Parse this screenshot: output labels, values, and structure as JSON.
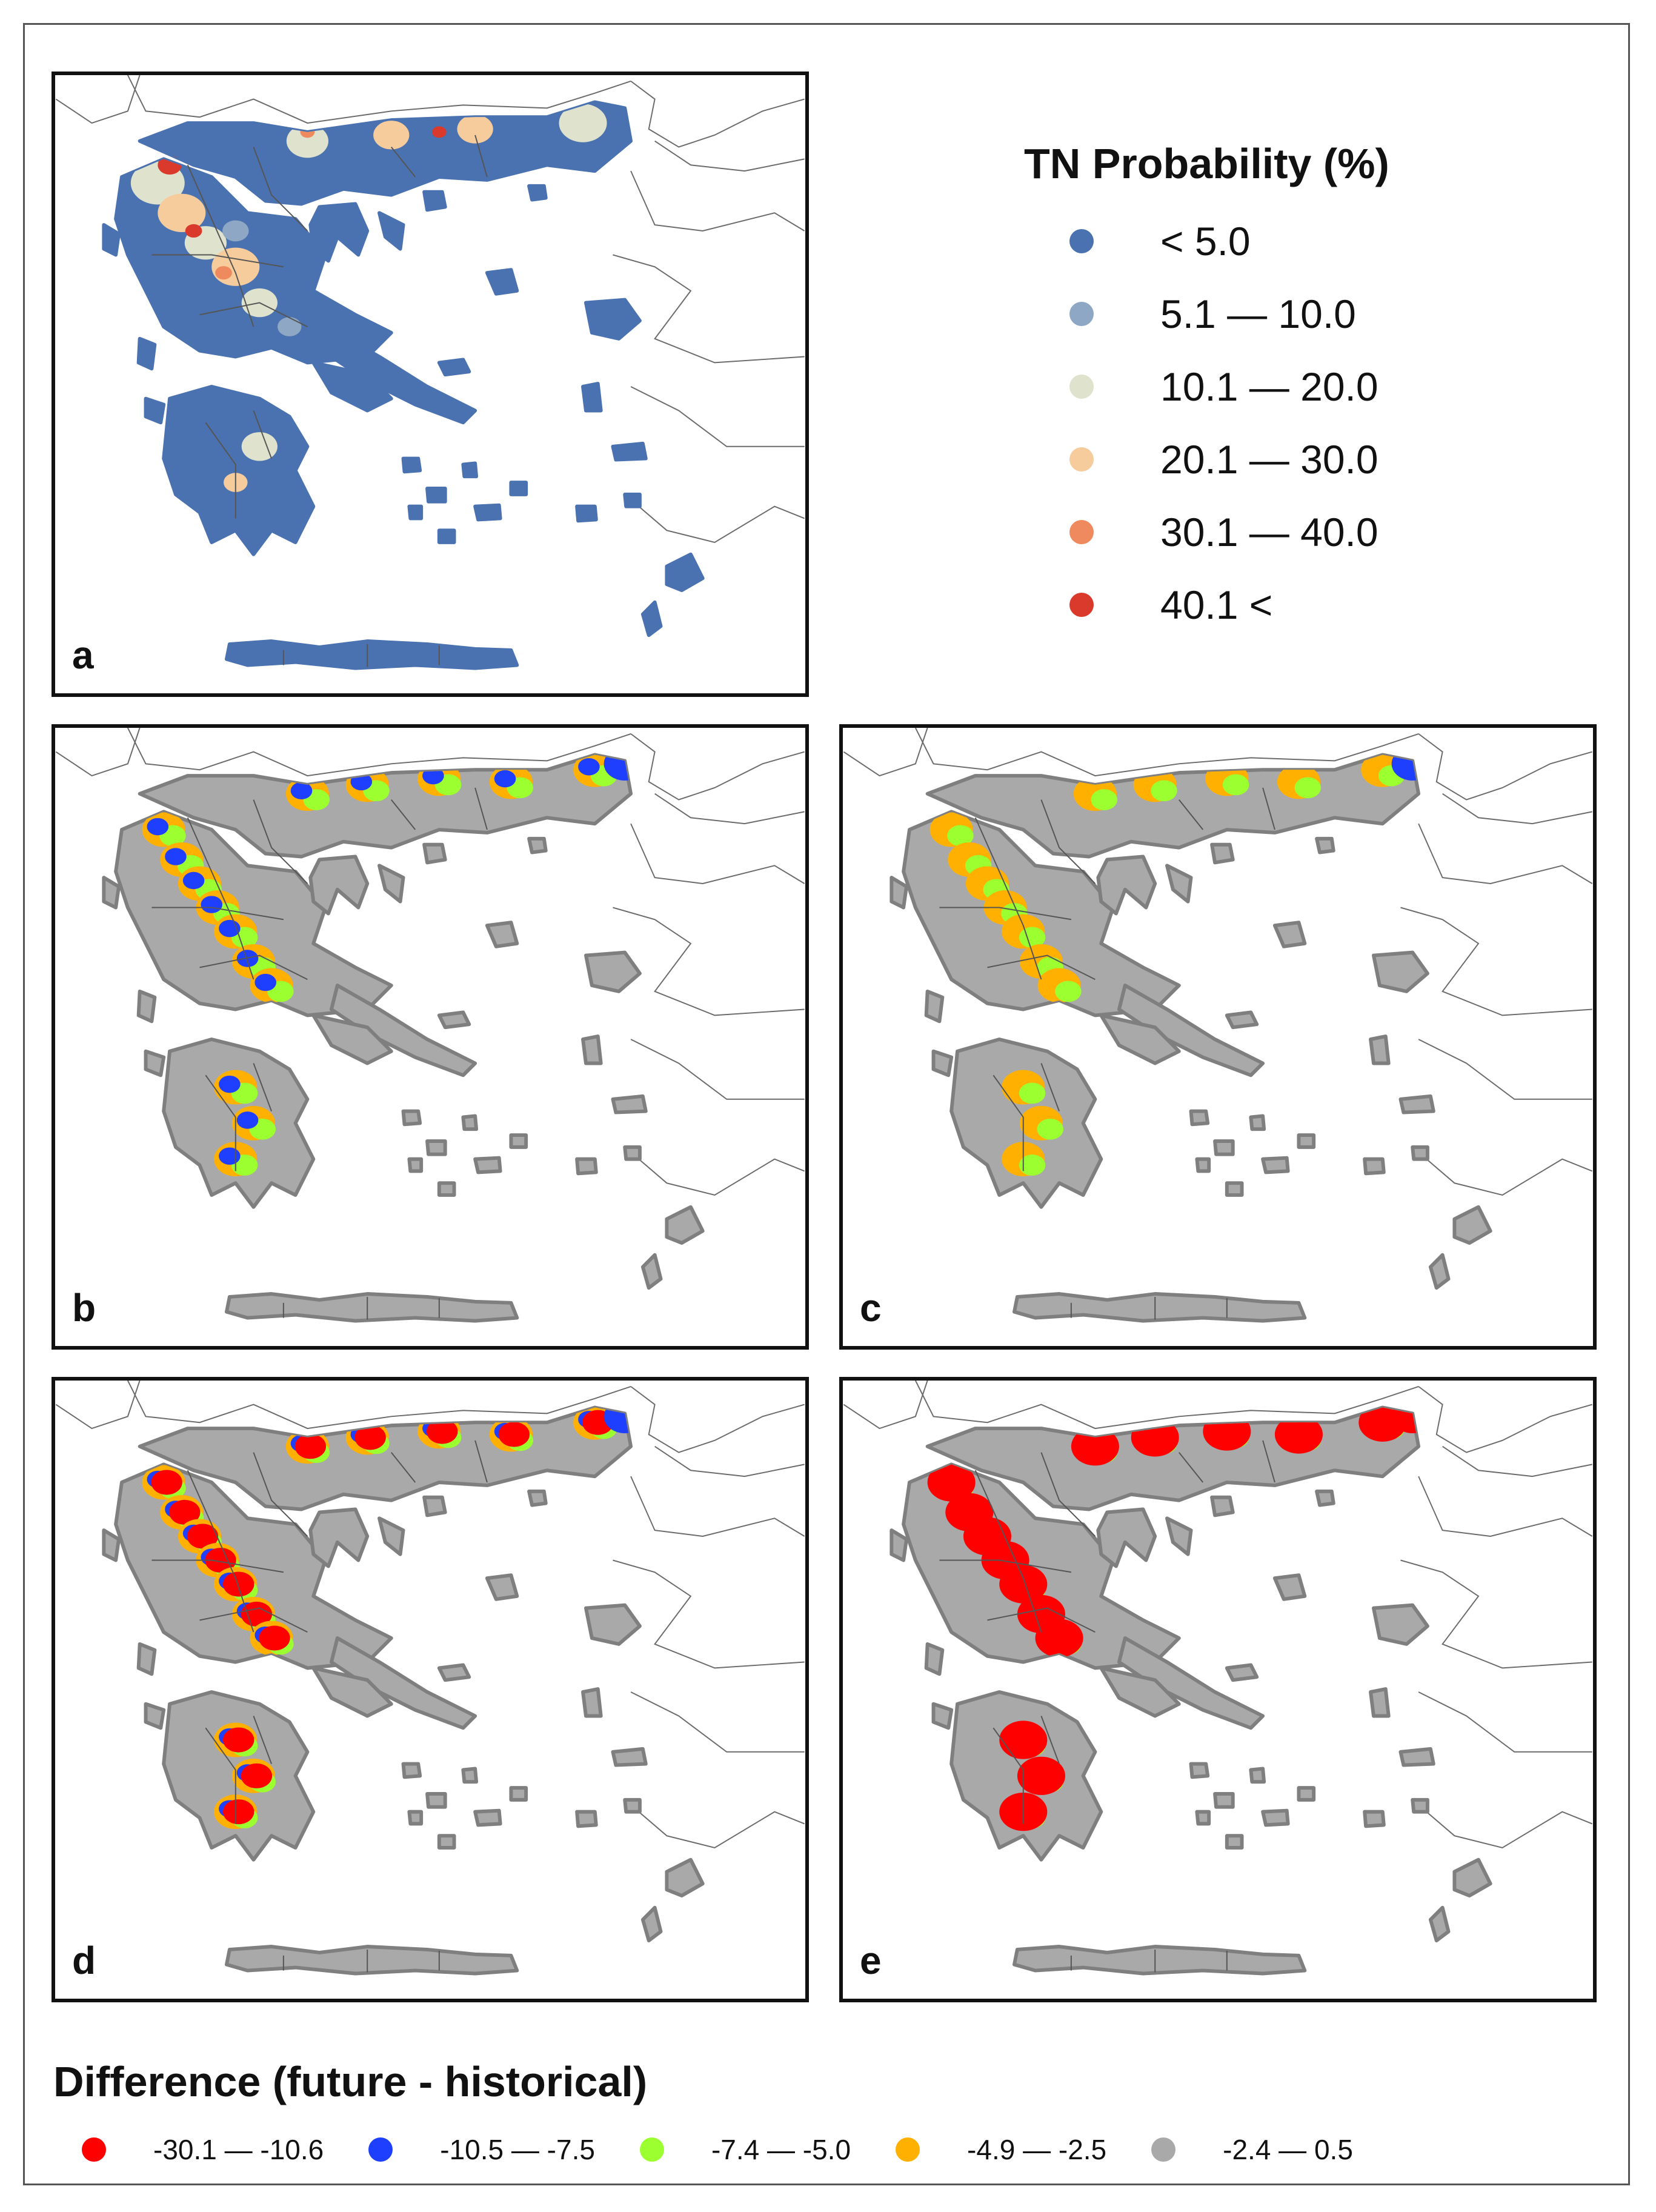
{
  "panels": {
    "a": {
      "label": "a"
    },
    "b": {
      "label": "b"
    },
    "c": {
      "label": "c"
    },
    "d": {
      "label": "d"
    },
    "e": {
      "label": "e"
    }
  },
  "legend_probability": {
    "title": "TN Probability (%)",
    "classes": [
      {
        "label": "< 5.0",
        "color": "#4a72b0"
      },
      {
        "label": "5.1 — 10.0",
        "color": "#8ea7c4"
      },
      {
        "label": "10.1 — 20.0",
        "color": "#dfe2cc"
      },
      {
        "label": "20.1 — 30.0",
        "color": "#f6cc9d"
      },
      {
        "label": "30.1 — 40.0",
        "color": "#ef8a5e"
      },
      {
        "label": "40.1 <",
        "color": "#d93a2b"
      }
    ]
  },
  "legend_difference": {
    "title": "Difference (future - historical)",
    "classes": [
      {
        "label": "-30.1 — -10.6",
        "color": "#ff0000"
      },
      {
        "label": "-10.5 — -7.5",
        "color": "#1f3fff"
      },
      {
        "label": "-7.4 — -5.0",
        "color": "#9cff2f"
      },
      {
        "label": "-4.9 — -2.5",
        "color": "#ffb000"
      },
      {
        "label": "-2.4 — 0.5",
        "color": "#a9a9a9"
      }
    ]
  }
}
